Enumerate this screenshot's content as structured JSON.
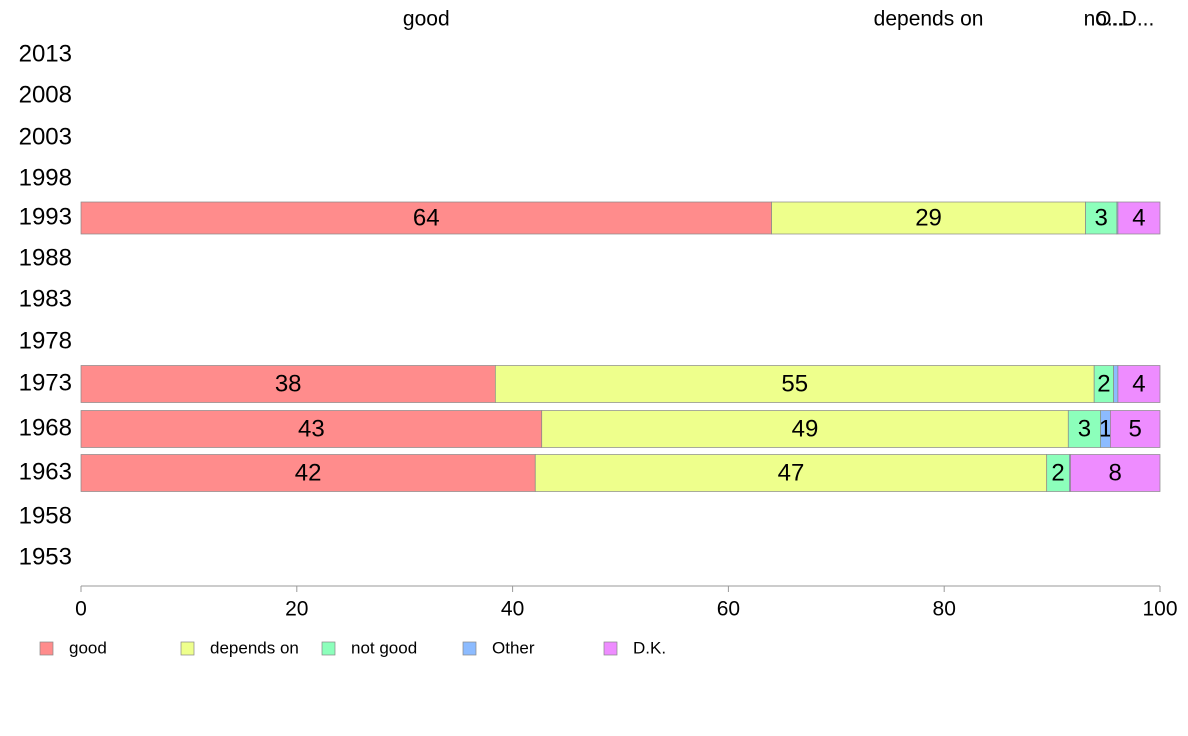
{
  "chart_data": {
    "type": "bar",
    "orientation": "horizontal",
    "stacked": true,
    "categories": [
      "2013",
      "2008",
      "2003",
      "1998",
      "1993",
      "1988",
      "1983",
      "1978",
      "1973",
      "1968",
      "1963",
      "1958",
      "1953"
    ],
    "series": [
      {
        "name": "good",
        "color": "#ff8c8c",
        "values": [
          null,
          null,
          null,
          null,
          64,
          null,
          null,
          null,
          38.4,
          42.7,
          42.1,
          null,
          null
        ],
        "labels": [
          "",
          "",
          "",
          "",
          "64",
          "",
          "",
          "",
          "38",
          "43",
          "42",
          "",
          ""
        ]
      },
      {
        "name": "depends on",
        "color": "#eeff8c",
        "values": [
          null,
          null,
          null,
          null,
          29.1,
          null,
          null,
          null,
          55.5,
          48.8,
          47.4,
          null,
          null
        ],
        "labels": [
          "",
          "",
          "",
          "",
          "29",
          "",
          "",
          "",
          "55",
          "49",
          "47",
          "",
          ""
        ]
      },
      {
        "name": "not good",
        "color": "#8cffbb",
        "values": [
          null,
          null,
          null,
          null,
          2.9,
          null,
          null,
          null,
          1.8,
          3.0,
          2.1,
          null,
          null
        ],
        "labels": [
          "",
          "",
          "",
          "",
          "3",
          "",
          "",
          "",
          "2",
          "3",
          "2",
          "",
          ""
        ]
      },
      {
        "name": "Other",
        "color": "#8cbbff",
        "values": [
          null,
          null,
          null,
          null,
          0.1,
          null,
          null,
          null,
          0.4,
          0.9,
          0.1,
          null,
          null
        ],
        "labels": [
          "",
          "",
          "",
          "",
          "",
          "",
          "",
          "",
          "",
          "1",
          "",
          "",
          ""
        ]
      },
      {
        "name": "D.K.",
        "color": "#ee8cff",
        "values": [
          null,
          null,
          null,
          null,
          3.9,
          null,
          null,
          null,
          3.9,
          4.6,
          8.3,
          null,
          null
        ],
        "labels": [
          "",
          "",
          "",
          "",
          "4",
          "",
          "",
          "",
          "4",
          "5",
          "8",
          "",
          ""
        ]
      }
    ],
    "top_labels": [
      "good",
      "depends on",
      "no...",
      "O...",
      "D..."
    ],
    "xlim": [
      0,
      100
    ],
    "xticks": [
      "0",
      "20",
      "40",
      "60",
      "80",
      "100"
    ],
    "grid": false,
    "legend_position": "bottom"
  }
}
